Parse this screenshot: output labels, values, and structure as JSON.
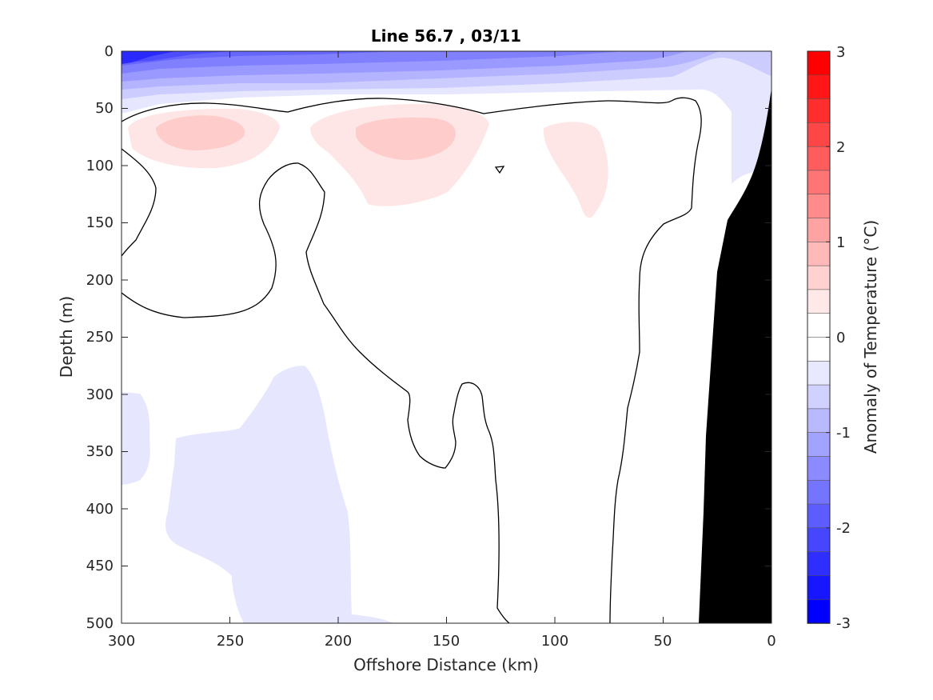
{
  "chart_data": {
    "type": "heatmap",
    "title": "Line 56.7 , 03/11",
    "xlabel": "Offshore Distance (km)",
    "ylabel": "Depth (m)",
    "xlim": [
      300,
      0
    ],
    "ylim": [
      0,
      500
    ],
    "x_ticks": [
      300,
      250,
      200,
      150,
      100,
      50,
      0
    ],
    "y_ticks": [
      0,
      50,
      100,
      150,
      200,
      250,
      300,
      350,
      400,
      450,
      500
    ],
    "colorbar": {
      "label": "Anomaly of Temperature (°C)",
      "range": [
        -3,
        3
      ],
      "ticks": [
        3,
        2,
        1,
        0,
        -1,
        -2,
        -3
      ],
      "levels": 24,
      "low_color": "#0000ff",
      "mid_color": "#ffffff",
      "high_color": "#ff0000"
    },
    "bathymetry_color": "#000000",
    "contours": [
      {
        "level": 0.0,
        "description": "zero anomaly isotherm"
      }
    ],
    "regions": [
      {
        "anomaly": -2.5,
        "area": "surface 0–20 m, x 300–270 km"
      },
      {
        "anomaly": -1.5,
        "area": "surface layer 0–25 m, x 300–50 km"
      },
      {
        "anomaly": -0.5,
        "area": "surface layer 25–45 m; nearshore 0–150 m x 40–0 km"
      },
      {
        "anomaly": 0.25,
        "area": "subsurface 55–110 m, x 290–80 km"
      },
      {
        "anomaly": 0.5,
        "area": "cores at 60–90 m near x 265 and 170 km"
      },
      {
        "anomaly": -0.25,
        "area": "deep 280–500 m, x 300–190 km"
      }
    ]
  }
}
